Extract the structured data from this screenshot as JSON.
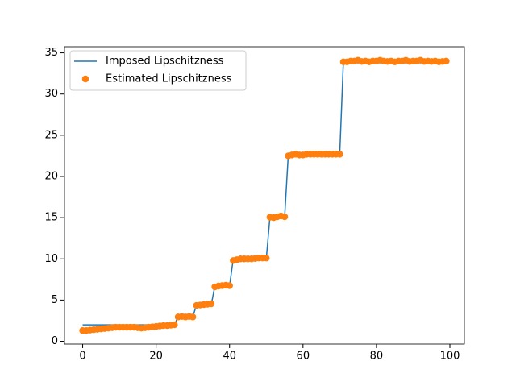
{
  "chart_data": {
    "type": "line",
    "x": [
      0,
      1,
      2,
      3,
      4,
      5,
      6,
      7,
      8,
      9,
      10,
      11,
      12,
      13,
      14,
      15,
      16,
      17,
      18,
      19,
      20,
      21,
      22,
      23,
      24,
      25,
      26,
      27,
      28,
      29,
      30,
      31,
      32,
      33,
      34,
      35,
      36,
      37,
      38,
      39,
      40,
      41,
      42,
      43,
      44,
      45,
      46,
      47,
      48,
      49,
      50,
      51,
      52,
      53,
      54,
      55,
      56,
      57,
      58,
      59,
      60,
      61,
      62,
      63,
      64,
      65,
      66,
      67,
      68,
      69,
      70,
      71,
      72,
      73,
      74,
      75,
      76,
      77,
      78,
      79,
      80,
      81,
      82,
      83,
      84,
      85,
      86,
      87,
      88,
      89,
      90,
      91,
      92,
      93,
      94,
      95,
      96,
      97,
      98,
      99
    ],
    "series": [
      {
        "name": "Imposed Lipschitzness",
        "color": "#1f77b4",
        "marker": "none",
        "values": [
          2,
          2,
          2,
          2,
          2,
          2,
          2,
          2,
          2,
          2,
          2,
          2,
          2,
          2,
          2,
          2,
          2,
          2,
          2,
          2,
          2,
          2,
          2,
          2,
          2,
          2,
          3,
          3,
          3,
          3,
          3,
          4.4,
          4.4,
          4.4,
          4.4,
          4.4,
          6.7,
          6.7,
          6.7,
          6.7,
          6.7,
          10,
          10,
          10,
          10,
          10,
          10,
          10,
          10,
          10,
          10,
          15.1,
          15.1,
          15.1,
          15.1,
          15.1,
          22.7,
          22.7,
          22.7,
          22.7,
          22.7,
          22.7,
          22.7,
          22.7,
          22.7,
          22.7,
          22.7,
          22.7,
          22.7,
          22.7,
          22.7,
          34,
          34,
          34,
          34,
          34,
          34,
          34,
          34,
          34,
          34,
          34,
          34,
          34,
          34,
          34,
          34,
          34,
          34,
          34,
          34,
          34,
          34,
          34,
          34,
          34,
          34,
          34,
          34,
          34
        ]
      },
      {
        "name": "Estimated Lipschitzness",
        "color": "#ff7f0e",
        "marker": "o",
        "values": [
          1.3,
          1.3,
          1.35,
          1.4,
          1.45,
          1.5,
          1.55,
          1.6,
          1.65,
          1.7,
          1.7,
          1.7,
          1.7,
          1.7,
          1.7,
          1.65,
          1.6,
          1.65,
          1.7,
          1.75,
          1.8,
          1.85,
          1.9,
          1.9,
          1.95,
          2.0,
          2.95,
          3.0,
          2.95,
          3.0,
          2.95,
          4.35,
          4.4,
          4.45,
          4.5,
          4.55,
          6.6,
          6.7,
          6.75,
          6.8,
          6.75,
          9.8,
          9.9,
          10.0,
          10.0,
          10.0,
          10.0,
          10.05,
          10.1,
          10.1,
          10.1,
          15.05,
          15.0,
          15.1,
          15.2,
          15.1,
          22.5,
          22.6,
          22.7,
          22.6,
          22.6,
          22.7,
          22.7,
          22.7,
          22.7,
          22.7,
          22.7,
          22.7,
          22.7,
          22.7,
          22.7,
          33.9,
          33.9,
          34.0,
          34.0,
          34.1,
          33.95,
          34.0,
          33.9,
          34.0,
          34.0,
          34.1,
          34.0,
          33.95,
          34.0,
          33.9,
          34.0,
          34.0,
          34.1,
          33.95,
          34.0,
          34.0,
          34.1,
          33.95,
          34.0,
          33.95,
          34.0,
          33.9,
          33.95,
          34.0
        ]
      }
    ],
    "xlim": [
      -4.95,
      103.95
    ],
    "xticks": [
      0,
      20,
      40,
      60,
      80,
      100
    ],
    "ylim": [
      -0.34,
      35.74
    ],
    "yticks": [
      0,
      5,
      10,
      15,
      20,
      25,
      30,
      35
    ],
    "legend": "upper left",
    "grid": false
  }
}
